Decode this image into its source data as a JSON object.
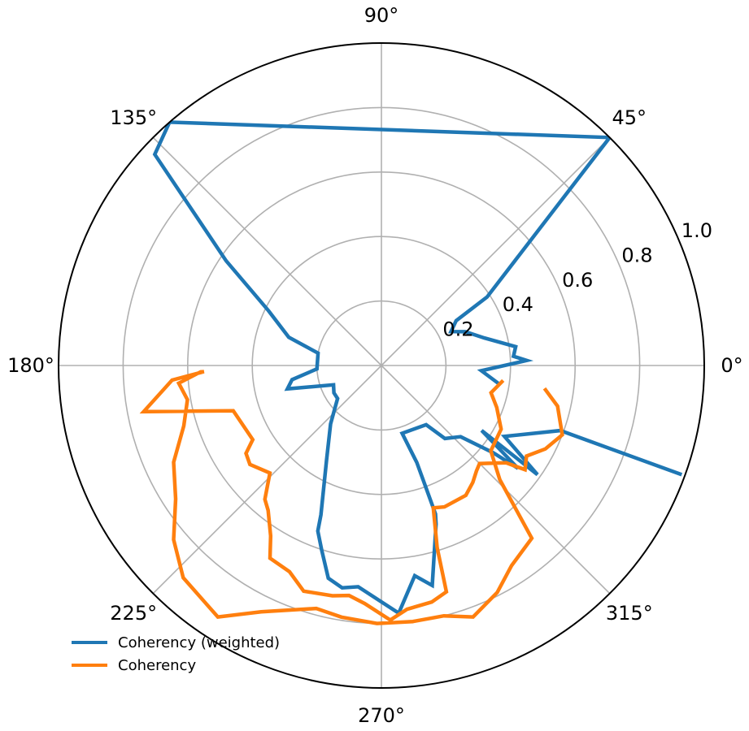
{
  "chart_data": {
    "type": "line",
    "projection": "polar",
    "theta_unit": "degrees",
    "theta_ticks": [
      0,
      45,
      90,
      135,
      180,
      225,
      270,
      315
    ],
    "theta_tick_labels": [
      "0°",
      "45°",
      "90°",
      "135°",
      "180°",
      "225°",
      "270°",
      "315°"
    ],
    "r_ticks": [
      0.2,
      0.4,
      0.6,
      0.8,
      1.0
    ],
    "r_tick_labels": [
      "0.2",
      "0.4",
      "0.6",
      "0.8",
      "1.0"
    ],
    "rlim": [
      0,
      1.0
    ],
    "grid": true,
    "legend": {
      "placement": "lower-left"
    },
    "series": [
      {
        "name": "Coherency (weighted)",
        "color": "#1f77b4",
        "points": [
          {
            "theta": -9,
            "r": 0.37
          },
          {
            "theta": -3,
            "r": 0.31
          },
          {
            "theta": 2,
            "r": 0.45
          },
          {
            "theta": 4,
            "r": 0.41
          },
          {
            "theta": 8,
            "r": 0.42
          },
          {
            "theta": 15,
            "r": 0.33
          },
          {
            "theta": 22,
            "r": 0.28
          },
          {
            "theta": 26,
            "r": 0.24
          },
          {
            "theta": 31,
            "r": 0.27
          },
          {
            "theta": 33,
            "r": 0.39
          },
          {
            "theta": 45,
            "r": 1.0
          },
          {
            "theta": 45,
            "r": 1.0
          },
          {
            "theta": 131,
            "r": 1.0
          },
          {
            "theta": 137,
            "r": 0.96
          },
          {
            "theta": 146,
            "r": 0.58
          },
          {
            "theta": 154,
            "r": 0.39
          },
          {
            "theta": 163,
            "r": 0.3
          },
          {
            "theta": 169,
            "r": 0.2
          },
          {
            "theta": 183,
            "r": 0.2
          },
          {
            "theta": 189,
            "r": 0.28
          },
          {
            "theta": 194,
            "r": 0.3
          },
          {
            "theta": 202,
            "r": 0.16
          },
          {
            "theta": 210,
            "r": 0.17
          },
          {
            "theta": 217,
            "r": 0.17
          },
          {
            "theta": 229,
            "r": 0.24
          },
          {
            "theta": 240,
            "r": 0.34
          },
          {
            "theta": 248,
            "r": 0.5
          },
          {
            "theta": 249,
            "r": 0.55
          },
          {
            "theta": 252,
            "r": 0.6
          },
          {
            "theta": 256,
            "r": 0.68
          },
          {
            "theta": 260,
            "r": 0.7
          },
          {
            "theta": 264,
            "r": 0.69
          },
          {
            "theta": 274,
            "r": 0.77
          },
          {
            "theta": 279,
            "r": 0.66
          },
          {
            "theta": 283,
            "r": 0.7
          },
          {
            "theta": 289,
            "r": 0.52
          },
          {
            "theta": 290,
            "r": 0.49
          },
          {
            "theta": 290,
            "r": 0.39
          },
          {
            "theta": 290,
            "r": 0.32
          },
          {
            "theta": 287,
            "r": 0.22
          },
          {
            "theta": 307,
            "r": 0.23
          },
          {
            "theta": 311,
            "r": 0.3
          },
          {
            "theta": 318,
            "r": 0.33
          },
          {
            "theta": 322,
            "r": 0.44
          },
          {
            "theta": 323,
            "r": 0.53
          },
          {
            "theta": 327,
            "r": 0.37
          },
          {
            "theta": 325,
            "r": 0.59
          },
          {
            "theta": 330,
            "r": 0.44
          },
          {
            "theta": 340,
            "r": 0.59
          },
          {
            "theta": 340,
            "r": 0.99
          }
        ]
      },
      {
        "name": "Coherency",
        "color": "#ff7f0e",
        "points": [
          {
            "theta": -8,
            "r": 0.51
          },
          {
            "theta": -13,
            "r": 0.56
          },
          {
            "theta": -21,
            "r": 0.6
          },
          {
            "theta": -27,
            "r": 0.57
          },
          {
            "theta": -32,
            "r": 0.53
          },
          {
            "theta": -36,
            "r": 0.55
          },
          {
            "theta": -38,
            "r": 0.49
          },
          {
            "theta": -45,
            "r": 0.43
          },
          {
            "theta": -48,
            "r": 0.44
          },
          {
            "theta": -52,
            "r": 0.46
          },
          {
            "theta": -57,
            "r": 0.48
          },
          {
            "theta": -66,
            "r": 0.48
          },
          {
            "theta": -70,
            "r": 0.47
          },
          {
            "theta": -73,
            "r": 0.59
          },
          {
            "theta": -74,
            "r": 0.73
          },
          {
            "theta": -78,
            "r": 0.75
          },
          {
            "theta": -84,
            "r": 0.76
          },
          {
            "theta": -88,
            "r": 0.79
          },
          {
            "theta": -94,
            "r": 0.74
          },
          {
            "theta": -98,
            "r": 0.72
          },
          {
            "theta": -102,
            "r": 0.73
          },
          {
            "theta": -109,
            "r": 0.74
          },
          {
            "theta": -114,
            "r": 0.7
          },
          {
            "theta": -120,
            "r": 0.69
          },
          {
            "theta": -123,
            "r": 0.63
          },
          {
            "theta": -128,
            "r": 0.57
          },
          {
            "theta": -131,
            "r": 0.55
          },
          {
            "theta": -136,
            "r": 0.48
          },
          {
            "theta": -143,
            "r": 0.51
          },
          {
            "theta": -147,
            "r": 0.5
          },
          {
            "theta": -150,
            "r": 0.46
          },
          {
            "theta": -163,
            "r": 0.48
          },
          {
            "theta": -169,
            "r": 0.75
          },
          {
            "theta": -176,
            "r": 0.65
          },
          {
            "theta": -178,
            "r": 0.55
          },
          {
            "theta": -178,
            "r": 0.56
          },
          {
            "theta": -175,
            "r": 0.63
          },
          {
            "theta": -170,
            "r": 0.61
          },
          {
            "theta": -163,
            "r": 0.64
          },
          {
            "theta": -155,
            "r": 0.71
          },
          {
            "theta": -147,
            "r": 0.76
          },
          {
            "theta": -140,
            "r": 0.84
          },
          {
            "theta": -133,
            "r": 0.9
          },
          {
            "theta": -123,
            "r": 0.93
          },
          {
            "theta": -116,
            "r": 0.85
          },
          {
            "theta": -105,
            "r": 0.78
          },
          {
            "theta": -99,
            "r": 0.79
          },
          {
            "theta": -91,
            "r": 0.8
          },
          {
            "theta": -83,
            "r": 0.8
          },
          {
            "theta": -76,
            "r": 0.8
          },
          {
            "theta": -70,
            "r": 0.83
          },
          {
            "theta": -63,
            "r": 0.79
          },
          {
            "theta": -57,
            "r": 0.74
          },
          {
            "theta": -49,
            "r": 0.71
          },
          {
            "theta": -44,
            "r": 0.51
          },
          {
            "theta": -38,
            "r": 0.43
          },
          {
            "theta": -28,
            "r": 0.42
          },
          {
            "theta": -20,
            "r": 0.38
          },
          {
            "theta": -14,
            "r": 0.35
          },
          {
            "theta": -7,
            "r": 0.38
          }
        ]
      }
    ]
  }
}
